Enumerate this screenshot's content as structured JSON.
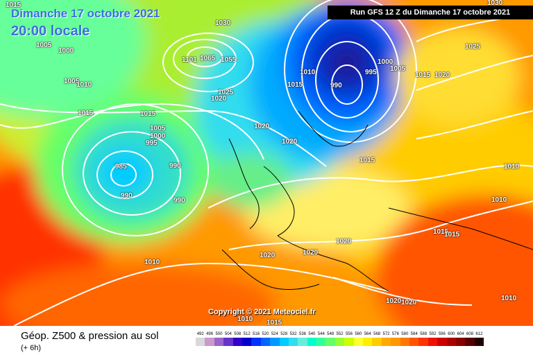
{
  "header": {
    "date": "Dimanche 17 octobre 2021",
    "time": "20:00 locale",
    "run": "Run GFS 12 Z du Dimanche 17 octobre 2021"
  },
  "map": {
    "copyright": "Copyright © 2021 Meteociel.fr",
    "pressure_labels": [
      "1015",
      "1005",
      "1000",
      "1005",
      "1010",
      "1015",
      "1015",
      "1005",
      "1000",
      "995",
      "985",
      "990",
      "990",
      "990",
      "1010",
      "1030",
      "1101",
      "1065",
      "1055",
      "1025",
      "1020",
      "1020",
      "1010",
      "1015",
      "990",
      "995",
      "1000",
      "1005",
      "1015",
      "1020",
      "1025",
      "1030",
      "1020",
      "1015",
      "1010",
      "1010",
      "1010",
      "1020",
      "1020",
      "1020",
      "1015",
      "1015",
      "1020",
      "1020",
      "1015",
      "1010"
    ],
    "colors": {
      "high": "#d40000",
      "low": "#0a1a8c",
      "isobar": "#ffffff"
    }
  },
  "footer": {
    "title": "Géop. Z500 & pression au sol",
    "subtitle": "(+ 6h)",
    "scale_values": [
      "492",
      "496",
      "500",
      "504",
      "508",
      "512",
      "516",
      "520",
      "524",
      "528",
      "532",
      "536",
      "540",
      "544",
      "548",
      "552",
      "556",
      "560",
      "564",
      "568",
      "572",
      "576",
      "580",
      "584",
      "588",
      "592",
      "596",
      "600",
      "604",
      "608",
      "612"
    ],
    "scale_colors": [
      "#d9d9d9",
      "#cc99cc",
      "#9966cc",
      "#6633cc",
      "#3300cc",
      "#0000cc",
      "#0033ff",
      "#0066ff",
      "#0099ff",
      "#00ccff",
      "#33ddee",
      "#66eedd",
      "#00ffcc",
      "#33ff99",
      "#66ff66",
      "#99ff33",
      "#ccff00",
      "#ffff33",
      "#ffee00",
      "#ffcc00",
      "#ffaa00",
      "#ff9900",
      "#ff7700",
      "#ff5500",
      "#ff3300",
      "#ee1100",
      "#cc0000",
      "#aa0000",
      "#880000",
      "#550000",
      "#220000"
    ]
  }
}
